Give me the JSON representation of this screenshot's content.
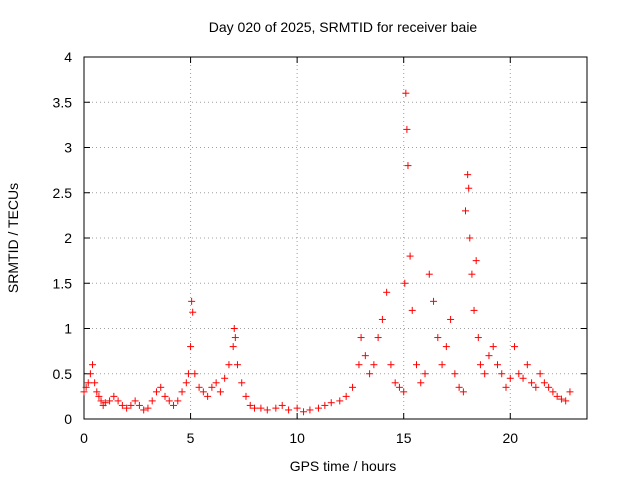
{
  "chart_data": {
    "type": "scatter",
    "title": "Day 020 of 2025, SRMTID for receiver baie",
    "xlabel": "GPS time / hours",
    "ylabel": "SRMTID / TECUs",
    "xlim": [
      0,
      23.6
    ],
    "ylim": [
      0,
      4
    ],
    "xticks": [
      0,
      5,
      10,
      15,
      20
    ],
    "yticks": [
      0,
      0.5,
      1,
      1.5,
      2,
      2.5,
      3,
      3.5,
      4
    ],
    "xtick_labels": [
      "0",
      "5",
      "10",
      "15",
      "20"
    ],
    "ytick_labels": [
      "0",
      "0.5",
      "1",
      "1.5",
      "2",
      "2.5",
      "3",
      "3.5",
      "4"
    ],
    "grid": true,
    "marker": "+",
    "color": "#ff0000",
    "series": [
      {
        "name": "SRMTID",
        "x": [
          0.0,
          0.1,
          0.2,
          0.3,
          0.4,
          0.5,
          0.6,
          0.7,
          0.8,
          0.9,
          1.0,
          1.2,
          1.4,
          1.6,
          1.8,
          2.0,
          2.2,
          2.4,
          2.6,
          2.8,
          3.0,
          3.2,
          3.4,
          3.6,
          3.8,
          4.0,
          4.2,
          4.4,
          4.6,
          4.8,
          4.9,
          5.0,
          5.05,
          5.1,
          5.2,
          5.4,
          5.6,
          5.8,
          6.0,
          6.2,
          6.4,
          6.6,
          6.8,
          7.0,
          7.05,
          7.1,
          7.2,
          7.4,
          7.6,
          7.8,
          8.0,
          8.3,
          8.6,
          9.0,
          9.3,
          9.6,
          10.0,
          10.3,
          10.6,
          11.0,
          11.3,
          11.6,
          12.0,
          12.3,
          12.6,
          12.9,
          13.0,
          13.2,
          13.4,
          13.6,
          13.8,
          14.0,
          14.2,
          14.4,
          14.6,
          14.8,
          15.0,
          15.05,
          15.1,
          15.15,
          15.2,
          15.3,
          15.4,
          15.6,
          15.8,
          16.0,
          16.2,
          16.4,
          16.6,
          16.8,
          17.0,
          17.2,
          17.4,
          17.6,
          17.8,
          17.9,
          18.0,
          18.05,
          18.1,
          18.2,
          18.3,
          18.4,
          18.5,
          18.6,
          18.8,
          19.0,
          19.2,
          19.4,
          19.6,
          19.8,
          20.0,
          20.2,
          20.4,
          20.6,
          20.8,
          21.0,
          21.2,
          21.4,
          21.6,
          21.8,
          22.0,
          22.2,
          22.4,
          22.6,
          22.8
        ],
        "y": [
          0.3,
          0.35,
          0.4,
          0.5,
          0.6,
          0.4,
          0.3,
          0.25,
          0.2,
          0.15,
          0.18,
          0.2,
          0.25,
          0.2,
          0.15,
          0.12,
          0.15,
          0.2,
          0.15,
          0.1,
          0.12,
          0.2,
          0.3,
          0.35,
          0.25,
          0.2,
          0.15,
          0.2,
          0.3,
          0.4,
          0.5,
          0.8,
          1.3,
          1.18,
          0.5,
          0.35,
          0.3,
          0.25,
          0.35,
          0.4,
          0.3,
          0.45,
          0.6,
          0.8,
          1.0,
          0.9,
          0.6,
          0.4,
          0.25,
          0.15,
          0.12,
          0.12,
          0.1,
          0.12,
          0.15,
          0.1,
          0.12,
          0.08,
          0.1,
          0.12,
          0.15,
          0.18,
          0.2,
          0.25,
          0.35,
          0.6,
          0.9,
          0.7,
          0.5,
          0.6,
          0.9,
          1.1,
          1.4,
          0.6,
          0.4,
          0.35,
          0.3,
          1.5,
          3.6,
          3.2,
          2.8,
          1.8,
          1.2,
          0.6,
          0.4,
          0.5,
          1.6,
          1.3,
          0.9,
          0.6,
          0.8,
          1.1,
          0.5,
          0.35,
          0.3,
          2.3,
          2.7,
          2.55,
          2.0,
          1.6,
          1.2,
          1.75,
          0.9,
          0.6,
          0.5,
          0.7,
          0.8,
          0.6,
          0.5,
          0.35,
          0.45,
          0.8,
          0.5,
          0.45,
          0.6,
          0.4,
          0.35,
          0.5,
          0.4,
          0.35,
          0.3,
          0.25,
          0.22,
          0.2,
          0.3
        ]
      }
    ]
  }
}
